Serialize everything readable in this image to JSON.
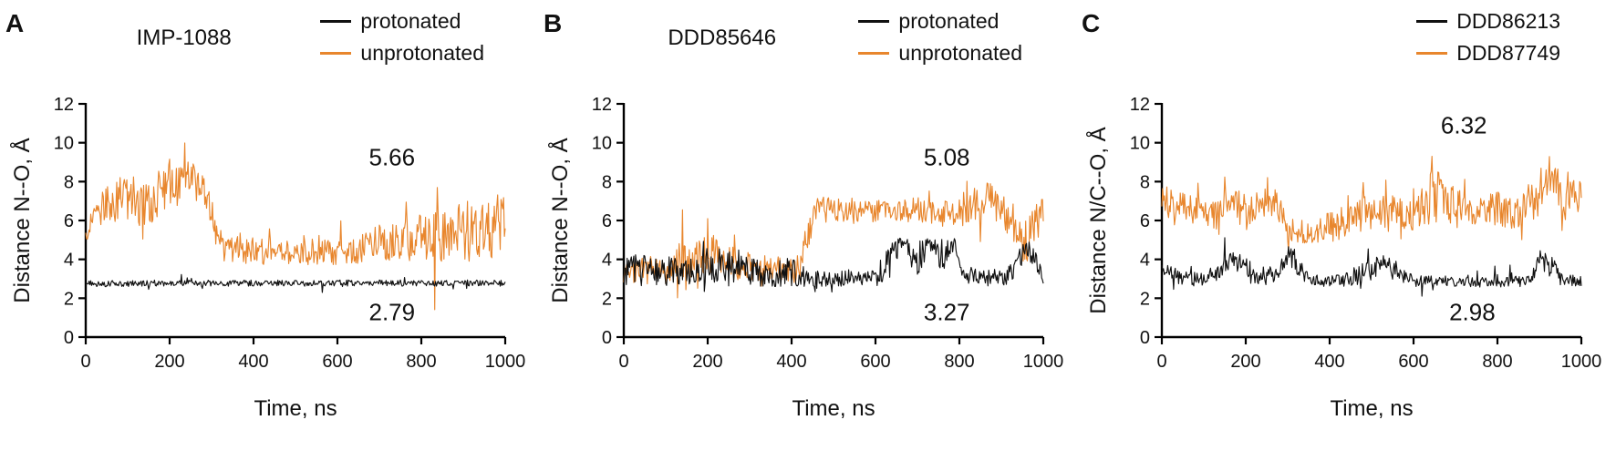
{
  "figure": {
    "background": "#ffffff"
  },
  "chart_data": [
    {
      "type": "line",
      "panel": "A",
      "title": "IMP-1088",
      "xlabel": "Time, ns",
      "ylabel": "Distance N--O, Å",
      "xlim": [
        0,
        1000
      ],
      "ylim": [
        0,
        12
      ],
      "xticks": [
        0,
        200,
        400,
        600,
        800,
        1000
      ],
      "yticks": [
        0,
        2,
        4,
        6,
        8,
        10,
        12
      ],
      "annotations": [
        {
          "text": "5.66",
          "x": 730,
          "y": 9.2
        },
        {
          "text": "2.79",
          "x": 730,
          "y": 1.25
        }
      ],
      "profile_format": "[time_ns, mean_distance_A, fluctuation_amplitude_A]",
      "series": [
        {
          "name": "protonated",
          "color": "#111111",
          "profile": [
            [
              0,
              2.75,
              0.16
            ],
            [
              500,
              2.78,
              0.16
            ],
            [
              1000,
              2.78,
              0.16
            ]
          ]
        },
        {
          "name": "unprotonated",
          "color": "#E8862D",
          "profile": [
            [
              0,
              4.8,
              0.8
            ],
            [
              30,
              6.5,
              1.0
            ],
            [
              80,
              7.2,
              1.2
            ],
            [
              130,
              7.0,
              1.3
            ],
            [
              160,
              6.8,
              0.9
            ],
            [
              200,
              8.0,
              1.2
            ],
            [
              250,
              7.8,
              1.2
            ],
            [
              290,
              7.3,
              0.8
            ],
            [
              310,
              5.5,
              0.8
            ],
            [
              330,
              4.6,
              0.7
            ],
            [
              420,
              4.4,
              0.7
            ],
            [
              500,
              4.3,
              0.6
            ],
            [
              560,
              4.5,
              0.8
            ],
            [
              620,
              4.3,
              0.6
            ],
            [
              700,
              4.8,
              1.0
            ],
            [
              780,
              5.0,
              1.2
            ],
            [
              850,
              5.2,
              1.4
            ],
            [
              920,
              5.5,
              1.6
            ],
            [
              1000,
              5.8,
              1.7
            ]
          ]
        }
      ]
    },
    {
      "type": "line",
      "panel": "B",
      "title": "DDD85646",
      "xlabel": "Time, ns",
      "ylabel": "Distance N--O, Å",
      "xlim": [
        0,
        1000
      ],
      "ylim": [
        0,
        12
      ],
      "xticks": [
        0,
        200,
        400,
        600,
        800,
        1000
      ],
      "yticks": [
        0,
        2,
        4,
        6,
        8,
        10,
        12
      ],
      "annotations": [
        {
          "text": "5.08",
          "x": 770,
          "y": 9.2
        },
        {
          "text": "3.27",
          "x": 770,
          "y": 1.25
        }
      ],
      "profile_format": "[time_ns, mean_distance_A, fluctuation_amplitude_A]",
      "series": [
        {
          "name": "protonated",
          "color": "#111111",
          "profile": [
            [
              0,
              3.6,
              0.9
            ],
            [
              60,
              3.4,
              0.8
            ],
            [
              150,
              3.4,
              0.8
            ],
            [
              250,
              3.5,
              0.9
            ],
            [
              350,
              3.2,
              0.6
            ],
            [
              400,
              3.4,
              0.8
            ],
            [
              430,
              3.0,
              0.4
            ],
            [
              500,
              3.0,
              0.4
            ],
            [
              600,
              3.1,
              0.5
            ],
            [
              640,
              4.0,
              1.0
            ],
            [
              660,
              4.8,
              0.3
            ],
            [
              700,
              4.0,
              1.0
            ],
            [
              730,
              4.8,
              0.3
            ],
            [
              760,
              4.2,
              0.9
            ],
            [
              790,
              4.8,
              0.3
            ],
            [
              810,
              3.2,
              0.5
            ],
            [
              900,
              3.0,
              0.4
            ],
            [
              930,
              3.3,
              0.6
            ],
            [
              950,
              4.5,
              0.5
            ],
            [
              975,
              4.3,
              0.6
            ],
            [
              1000,
              3.2,
              0.5
            ]
          ]
        },
        {
          "name": "unprotonated",
          "color": "#E8862D",
          "profile": [
            [
              0,
              3.3,
              0.6
            ],
            [
              100,
              3.5,
              0.8
            ],
            [
              170,
              4.0,
              1.0
            ],
            [
              220,
              4.2,
              1.1
            ],
            [
              270,
              3.8,
              0.9
            ],
            [
              330,
              3.4,
              0.5
            ],
            [
              380,
              3.6,
              0.7
            ],
            [
              420,
              3.5,
              0.8
            ],
            [
              440,
              5.5,
              1.0
            ],
            [
              460,
              6.8,
              0.6
            ],
            [
              550,
              6.4,
              0.6
            ],
            [
              650,
              6.5,
              0.6
            ],
            [
              750,
              6.4,
              0.7
            ],
            [
              820,
              6.6,
              0.9
            ],
            [
              870,
              7.0,
              1.1
            ],
            [
              900,
              6.6,
              0.8
            ],
            [
              940,
              5.5,
              1.2
            ],
            [
              960,
              5.0,
              1.2
            ],
            [
              1000,
              6.3,
              1.0
            ]
          ]
        }
      ]
    },
    {
      "type": "line",
      "panel": "C",
      "title": "",
      "xlabel": "Time, ns",
      "ylabel": "Distance N/C--O, Å",
      "xlim": [
        0,
        1000
      ],
      "ylim": [
        0,
        12
      ],
      "xticks": [
        0,
        200,
        400,
        600,
        800,
        1000
      ],
      "yticks": [
        0,
        2,
        4,
        6,
        8,
        10,
        12
      ],
      "annotations": [
        {
          "text": "6.32",
          "x": 720,
          "y": 10.85
        },
        {
          "text": "2.98",
          "x": 740,
          "y": 1.25
        }
      ],
      "profile_format": "[time_ns, mean_distance_A, fluctuation_amplitude_A]",
      "series": [
        {
          "name": "DDD86213",
          "color": "#111111",
          "profile": [
            [
              0,
              3.4,
              0.5
            ],
            [
              50,
              3.0,
              0.35
            ],
            [
              120,
              3.0,
              0.4
            ],
            [
              150,
              3.7,
              0.6
            ],
            [
              185,
              3.9,
              0.5
            ],
            [
              210,
              3.1,
              0.4
            ],
            [
              270,
              3.2,
              0.5
            ],
            [
              300,
              4.2,
              0.5
            ],
            [
              320,
              3.9,
              0.6
            ],
            [
              350,
              2.9,
              0.3
            ],
            [
              430,
              2.9,
              0.3
            ],
            [
              480,
              3.3,
              0.6
            ],
            [
              520,
              3.8,
              0.6
            ],
            [
              560,
              3.4,
              0.5
            ],
            [
              600,
              2.9,
              0.3
            ],
            [
              700,
              2.85,
              0.25
            ],
            [
              800,
              2.8,
              0.25
            ],
            [
              880,
              2.9,
              0.3
            ],
            [
              905,
              4.2,
              0.5
            ],
            [
              930,
              3.5,
              0.7
            ],
            [
              960,
              2.9,
              0.3
            ],
            [
              1000,
              2.9,
              0.3
            ]
          ]
        },
        {
          "name": "DDD87749",
          "color": "#E8862D",
          "profile": [
            [
              0,
              7.4,
              0.8
            ],
            [
              60,
              6.6,
              0.8
            ],
            [
              120,
              6.3,
              0.8
            ],
            [
              170,
              6.8,
              1.0
            ],
            [
              220,
              6.5,
              0.8
            ],
            [
              260,
              7.2,
              1.0
            ],
            [
              300,
              5.6,
              0.7
            ],
            [
              360,
              5.4,
              0.7
            ],
            [
              420,
              5.8,
              0.8
            ],
            [
              470,
              6.3,
              0.9
            ],
            [
              540,
              6.5,
              0.9
            ],
            [
              600,
              6.2,
              0.8
            ],
            [
              650,
              7.5,
              1.6
            ],
            [
              680,
              6.8,
              1.2
            ],
            [
              740,
              6.3,
              0.8
            ],
            [
              800,
              6.6,
              0.9
            ],
            [
              850,
              6.3,
              0.8
            ],
            [
              900,
              7.5,
              1.3
            ],
            [
              930,
              8.3,
              1.2
            ],
            [
              960,
              7.5,
              1.2
            ],
            [
              1000,
              7.0,
              1.0
            ]
          ]
        }
      ]
    }
  ]
}
